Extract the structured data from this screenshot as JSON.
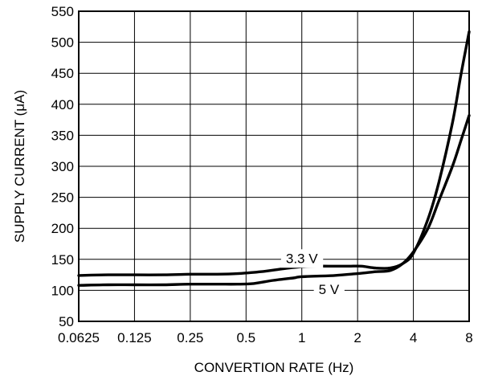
{
  "chart_data": {
    "type": "line",
    "title": "",
    "xlabel": "CONVERTION RATE (Hz)",
    "ylabel": "SUPPLY CURRENT (μA)",
    "x_scale": "log2",
    "x_ticks": [
      0.0625,
      0.125,
      0.25,
      0.5,
      1,
      2,
      4,
      8
    ],
    "x_tick_labels": [
      "0.0625",
      "0.125",
      "0.25",
      "0.5",
      "1",
      "2",
      "4",
      "8"
    ],
    "xlim": [
      0.0625,
      8
    ],
    "y_ticks": [
      50,
      100,
      150,
      200,
      250,
      300,
      350,
      400,
      450,
      500,
      550
    ],
    "y_tick_labels": [
      "50",
      "100",
      "150",
      "200",
      "250",
      "300",
      "350",
      "400",
      "450",
      "500",
      "550"
    ],
    "ylim": [
      50,
      550
    ],
    "grid": true,
    "legend": "none",
    "series": [
      {
        "name": "3.3 V",
        "x": [
          0.0625,
          0.09,
          0.125,
          0.18,
          0.25,
          0.35,
          0.45,
          0.6,
          0.8,
          1.0,
          1.2,
          1.5,
          1.8,
          2.1,
          2.5,
          3.0,
          3.5,
          4.0,
          4.8,
          5.5,
          6.5,
          7.2,
          8.0
        ],
        "y": [
          124,
          125,
          125,
          125,
          126,
          126,
          127,
          130,
          135,
          138,
          139,
          139,
          139,
          139,
          136,
          136,
          143,
          160,
          215,
          275,
          370,
          445,
          517
        ]
      },
      {
        "name": "5 V",
        "x": [
          0.0625,
          0.09,
          0.125,
          0.18,
          0.25,
          0.35,
          0.45,
          0.55,
          0.7,
          0.9,
          1.0,
          1.5,
          2.0,
          2.5,
          3.0,
          3.5,
          4.0,
          4.8,
          5.5,
          6.5,
          7.2,
          8.0
        ],
        "y": [
          108,
          109,
          109,
          109,
          110,
          110,
          110,
          111,
          116,
          120,
          122,
          124,
          127,
          130,
          132,
          143,
          162,
          200,
          245,
          300,
          340,
          382
        ]
      }
    ],
    "annotations": [
      {
        "text": "3.3 V",
        "x": 1.0,
        "y": 152
      },
      {
        "text": "5 V",
        "x": 1.4,
        "y": 102
      }
    ]
  }
}
